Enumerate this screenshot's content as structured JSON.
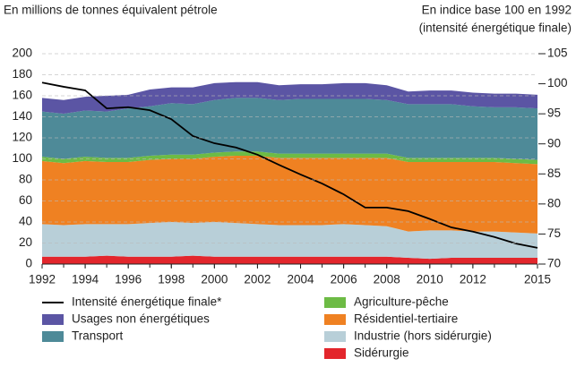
{
  "chart_data": {
    "type": "stacked-area",
    "y_label": "En millions de tonnes équivalent pétrole",
    "y2_label": [
      "En indice base 100 en 1992",
      "(intensité énergétique finale)"
    ],
    "x": [
      1992,
      1993,
      1994,
      1995,
      1996,
      1997,
      1998,
      1999,
      2000,
      2001,
      2002,
      2003,
      2004,
      2005,
      2006,
      2007,
      2008,
      2009,
      2010,
      2011,
      2012,
      2013,
      2014,
      2015
    ],
    "xlim": [
      1992,
      2015
    ],
    "xticks": [
      1992,
      1994,
      1996,
      1998,
      2000,
      2002,
      2004,
      2006,
      2008,
      2010,
      2012,
      2015
    ],
    "ylim": [
      0,
      200
    ],
    "yticks": [
      0,
      20,
      40,
      60,
      80,
      100,
      120,
      140,
      160,
      180,
      200
    ],
    "y2lim": [
      70,
      105
    ],
    "y2ticks": [
      70,
      75,
      80,
      85,
      90,
      95,
      100,
      105
    ],
    "grid": true,
    "series": [
      {
        "name": "Intensité énergétique finale*",
        "type": "line",
        "axis": "y2",
        "color": "#000000",
        "values": [
          100.2,
          99.5,
          98.9,
          95.9,
          96.1,
          95.6,
          94.1,
          91.3,
          90.1,
          89.4,
          88.2,
          86.5,
          84.9,
          83.4,
          81.6,
          79.4,
          79.4,
          78.8,
          77.5,
          76.1,
          75.4,
          74.5,
          73.4,
          72.7
        ]
      },
      {
        "name": "Usages non énergétiques",
        "color": "#5b55a4",
        "values": [
          13,
          13,
          13,
          15,
          13,
          16,
          15,
          16,
          16,
          15,
          15,
          14,
          14,
          14,
          15,
          15,
          14,
          12,
          13,
          13,
          13,
          13,
          13,
          13
        ]
      },
      {
        "name": "Transport",
        "color": "#4e8a98",
        "values": [
          43,
          43,
          44,
          44,
          47,
          47,
          49,
          48,
          50,
          51,
          51,
          51,
          52,
          52,
          52,
          52,
          51,
          51,
          51,
          51,
          49,
          48,
          49,
          49
        ]
      },
      {
        "name": "Agriculture-pêche",
        "color": "#6dbb45",
        "values": [
          4,
          4,
          4,
          4,
          4,
          4,
          4,
          4,
          4,
          4,
          4,
          4,
          4,
          4,
          4,
          4,
          4,
          4,
          4,
          4,
          4,
          4,
          4,
          4
        ]
      },
      {
        "name": "Résidentiel-tertiaire",
        "color": "#ef8122",
        "values": [
          60,
          59,
          60,
          59,
          59,
          60,
          60,
          61,
          62,
          64,
          65,
          64,
          64,
          64,
          63,
          64,
          65,
          66,
          65,
          65,
          66,
          66,
          66,
          66
        ]
      },
      {
        "name": "Industrie (hors sidérurgie)",
        "color": "#b8cfd8",
        "values": [
          31,
          30,
          31,
          30,
          31,
          32,
          33,
          31,
          33,
          32,
          31,
          30,
          30,
          30,
          31,
          30,
          29,
          25,
          27,
          26,
          25,
          25,
          24,
          23
        ]
      },
      {
        "name": "Sidérurgie",
        "color": "#e3262c",
        "values": [
          7,
          7,
          7,
          8,
          7,
          7,
          7,
          8,
          7,
          7,
          7,
          7,
          7,
          7,
          7,
          7,
          7,
          6,
          5,
          6,
          6,
          6,
          6,
          6
        ]
      }
    ]
  }
}
